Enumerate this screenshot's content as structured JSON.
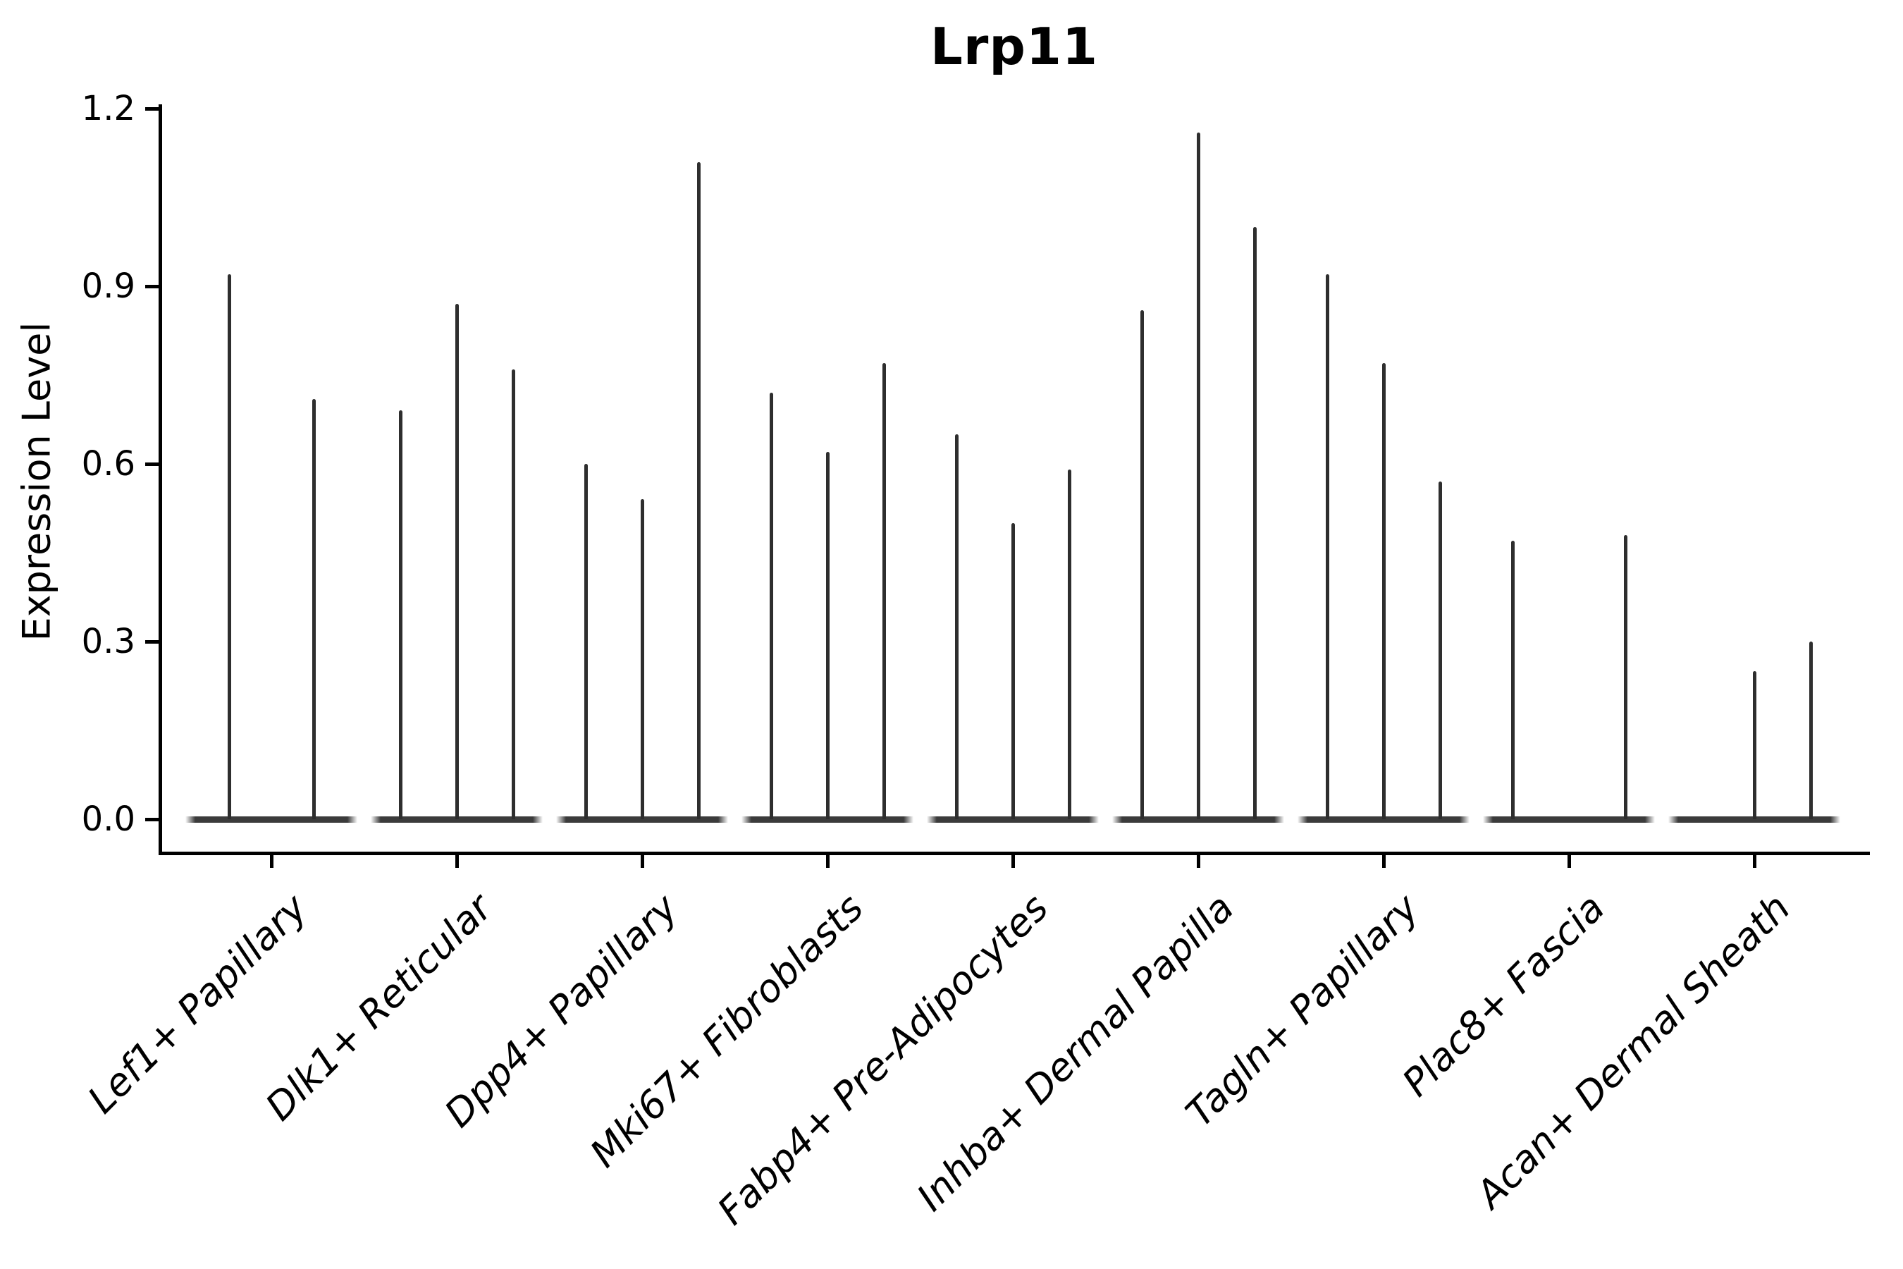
{
  "title": "Lrp11",
  "y_axis": {
    "label": "Expression Level",
    "tick_labels": [
      "1.2",
      "0.9",
      "0.6",
      "0.3",
      "0.0"
    ]
  },
  "chart_data": {
    "type": "violin",
    "title": "Lrp11",
    "xlabel": "",
    "ylabel": "Expression Level",
    "ylim": [
      0,
      1.2
    ],
    "yticks": [
      0.0,
      0.3,
      0.6,
      0.9,
      1.2
    ],
    "grid": false,
    "legend": null,
    "categories": [
      "Lef1+ Papillary",
      "Dlk1+ Reticular",
      "Dpp4+ Papillary",
      "Mki67+ Fibroblasts",
      "Fabp4+ Pre-Adipocytes",
      "Inhba+ Dermal Papilla",
      "Tagln+ Papillary",
      "Plac8+ Fascia",
      "Acan+ Dermal Sheath"
    ],
    "groups": [
      {
        "category": "Lef1+ Papillary",
        "violins": [
          {
            "offset": -60,
            "max": 0.92
          },
          {
            "offset": 60,
            "max": 0.71
          }
        ]
      },
      {
        "category": "Dlk1+ Reticular",
        "violins": [
          {
            "offset": -80,
            "max": 0.69
          },
          {
            "offset": 0,
            "max": 0.87
          },
          {
            "offset": 80,
            "max": 0.76
          }
        ]
      },
      {
        "category": "Dpp4+ Papillary",
        "violins": [
          {
            "offset": -80,
            "max": 0.6
          },
          {
            "offset": 0,
            "max": 0.54
          },
          {
            "offset": 80,
            "max": 1.11
          }
        ]
      },
      {
        "category": "Mki67+ Fibroblasts",
        "violins": [
          {
            "offset": -80,
            "max": 0.72
          },
          {
            "offset": 0,
            "max": 0.62
          },
          {
            "offset": 80,
            "max": 0.77
          }
        ]
      },
      {
        "category": "Fabp4+ Pre-Adipocytes",
        "violins": [
          {
            "offset": -80,
            "max": 0.65
          },
          {
            "offset": 0,
            "max": 0.5
          },
          {
            "offset": 80,
            "max": 0.59
          }
        ]
      },
      {
        "category": "Inhba+ Dermal Papilla",
        "violins": [
          {
            "offset": -80,
            "max": 0.86
          },
          {
            "offset": 0,
            "max": 1.16
          },
          {
            "offset": 80,
            "max": 1.0
          }
        ]
      },
      {
        "category": "Tagln+ Papillary",
        "violins": [
          {
            "offset": -80,
            "max": 0.92
          },
          {
            "offset": 0,
            "max": 0.77
          },
          {
            "offset": 80,
            "max": 0.57
          }
        ]
      },
      {
        "category": "Plac8+ Fascia",
        "violins": [
          {
            "offset": -80,
            "max": 0.47
          },
          {
            "offset": 80,
            "max": 0.48
          }
        ]
      },
      {
        "category": "Acan+ Dermal Sheath",
        "violins": [
          {
            "offset": 0,
            "max": 0.25
          },
          {
            "offset": 80,
            "max": 0.3
          }
        ]
      }
    ],
    "colors": {
      "spike": "#2e2e2e",
      "base": "#3b3b3b",
      "axis": "#000000"
    }
  }
}
